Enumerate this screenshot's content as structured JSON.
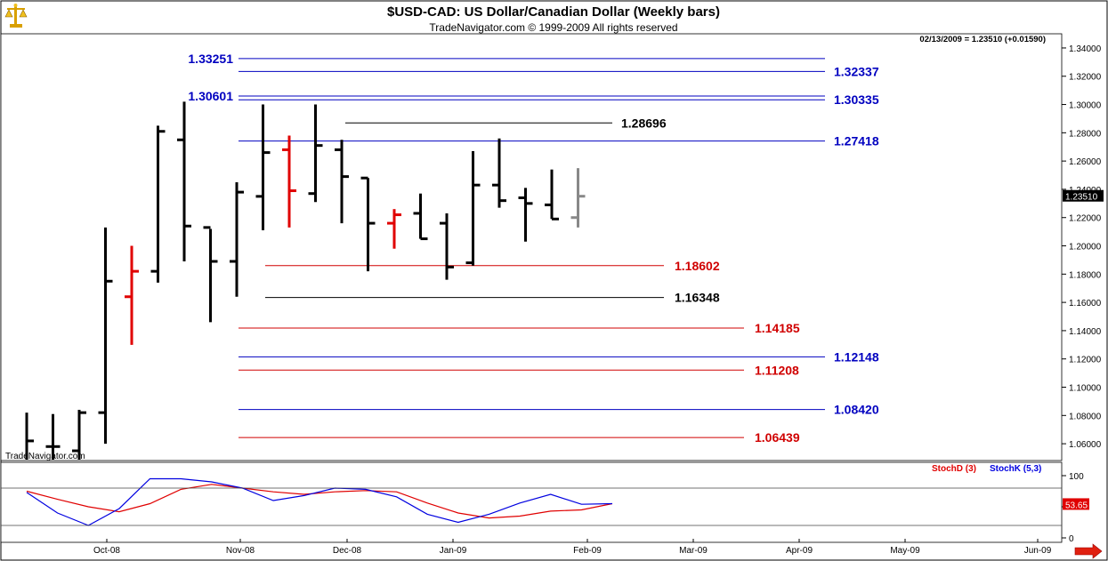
{
  "header": {
    "title": "$USD-CAD:  US Dollar/Canadian Dollar  (Weekly bars)",
    "copyright": "TradeNavigator.com © 1999-2009 All rights reserved",
    "quote": "02/13/2009 = 1.23510 (+0.01590)",
    "watermark": "TradeNavigator.com",
    "logo_icon": "scales-logo-icon"
  },
  "colors": {
    "frame": "#000000",
    "price_bar": "#000000",
    "price_bar_alt": "#e00000",
    "price_bar_last": "#888888",
    "level_blue": "#0000c0",
    "level_red": "#d00000",
    "level_black": "#000000",
    "stoch_d": "#e00000",
    "stoch_k": "#0000e0",
    "nav_arrow": "#e02010"
  },
  "chart_data": [
    {
      "type": "ohlc",
      "title": "$USD-CAD:  US Dollar/Canadian Dollar  (Weekly bars)",
      "ylim": [
        1.05,
        1.345
      ],
      "yticks": [
        "1.34000",
        "1.32000",
        "1.30000",
        "1.28000",
        "1.26000",
        "1.24000",
        "1.22000",
        "1.20000",
        "1.18000",
        "1.16000",
        "1.14000",
        "1.12000",
        "1.10000",
        "1.08000",
        "1.06000"
      ],
      "ytick_values": [
        1.34,
        1.32,
        1.3,
        1.28,
        1.26,
        1.24,
        1.22,
        1.2,
        1.18,
        1.16,
        1.14,
        1.12,
        1.1,
        1.08,
        1.06
      ],
      "xticks": [
        "Oct-08",
        "Nov-08",
        "Dec-08",
        "Jan-09",
        "Feb-09",
        "Mar-09",
        "Apr-09",
        "May-09",
        "Jun-09"
      ],
      "last_price_label": "1.23510",
      "last_price": 1.2351,
      "bars": [
        {
          "o": 1.045,
          "h": 1.082,
          "l": 1.045,
          "c": 1.062,
          "color": "black"
        },
        {
          "o": 1.058,
          "h": 1.081,
          "l": 1.045,
          "c": 1.058,
          "color": "black"
        },
        {
          "o": 1.055,
          "h": 1.084,
          "l": 1.045,
          "c": 1.082,
          "color": "black"
        },
        {
          "o": 1.082,
          "h": 1.213,
          "l": 1.06,
          "c": 1.175,
          "color": "black"
        },
        {
          "o": 1.164,
          "h": 1.2,
          "l": 1.13,
          "c": 1.182,
          "color": "red"
        },
        {
          "o": 1.182,
          "h": 1.285,
          "l": 1.174,
          "c": 1.281,
          "color": "black"
        },
        {
          "o": 1.275,
          "h": 1.302,
          "l": 1.189,
          "c": 1.214,
          "color": "black"
        },
        {
          "o": 1.213,
          "h": 1.212,
          "l": 1.146,
          "c": 1.189,
          "color": "black"
        },
        {
          "o": 1.189,
          "h": 1.245,
          "l": 1.164,
          "c": 1.238,
          "color": "black"
        },
        {
          "o": 1.235,
          "h": 1.3,
          "l": 1.211,
          "c": 1.266,
          "color": "black"
        },
        {
          "o": 1.268,
          "h": 1.278,
          "l": 1.213,
          "c": 1.239,
          "color": "red"
        },
        {
          "o": 1.237,
          "h": 1.3,
          "l": 1.231,
          "c": 1.271,
          "color": "black"
        },
        {
          "o": 1.268,
          "h": 1.275,
          "l": 1.216,
          "c": 1.249,
          "color": "black"
        },
        {
          "o": 1.248,
          "h": 1.248,
          "l": 1.182,
          "c": 1.216,
          "color": "black"
        },
        {
          "o": 1.216,
          "h": 1.226,
          "l": 1.198,
          "c": 1.222,
          "color": "red"
        },
        {
          "o": 1.223,
          "h": 1.237,
          "l": 1.205,
          "c": 1.205,
          "color": "black"
        },
        {
          "o": 1.216,
          "h": 1.223,
          "l": 1.176,
          "c": 1.185,
          "color": "black"
        },
        {
          "o": 1.188,
          "h": 1.267,
          "l": 1.186,
          "c": 1.243,
          "color": "black"
        },
        {
          "o": 1.243,
          "h": 1.276,
          "l": 1.227,
          "c": 1.232,
          "color": "black"
        },
        {
          "o": 1.234,
          "h": 1.241,
          "l": 1.203,
          "c": 1.23,
          "color": "black"
        },
        {
          "o": 1.229,
          "h": 1.254,
          "l": 1.219,
          "c": 1.219,
          "color": "black"
        },
        {
          "o": 1.22,
          "h": 1.255,
          "l": 1.213,
          "c": 1.2351,
          "color": "gray"
        }
      ],
      "levels": [
        {
          "value": 1.33251,
          "label": "1.33251",
          "side": "left",
          "color": "blue"
        },
        {
          "value": 1.32337,
          "label": "1.32337",
          "side": "right",
          "color": "blue"
        },
        {
          "value": 1.30601,
          "label": "1.30601",
          "side": "left",
          "color": "blue"
        },
        {
          "value": 1.30335,
          "label": "1.30335",
          "side": "right",
          "color": "blue"
        },
        {
          "value": 1.28696,
          "label": "1.28696",
          "side": "mid",
          "color": "black"
        },
        {
          "value": 1.27418,
          "label": "1.27418",
          "side": "right",
          "color": "blue"
        },
        {
          "value": 1.18602,
          "label": "1.18602",
          "side": "mid",
          "color": "red"
        },
        {
          "value": 1.16348,
          "label": "1.16348",
          "side": "mid",
          "color": "black"
        },
        {
          "value": 1.14185,
          "label": "1.14185",
          "side": "right",
          "color": "red"
        },
        {
          "value": 1.12148,
          "label": "1.12148",
          "side": "right",
          "color": "blue"
        },
        {
          "value": 1.11208,
          "label": "1.11208",
          "side": "right",
          "color": "red"
        },
        {
          "value": 1.0842,
          "label": "1.08420",
          "side": "right",
          "color": "blue"
        },
        {
          "value": 1.06439,
          "label": "1.06439",
          "side": "right",
          "color": "red"
        }
      ]
    },
    {
      "type": "line",
      "ylim": [
        0,
        100
      ],
      "yticks": [
        "100",
        "50",
        "0"
      ],
      "ytick_values": [
        100,
        50,
        0
      ],
      "last_value_label": "53.65",
      "legend": [
        "StochD (3)",
        "StochK (5,3)"
      ],
      "series": [
        {
          "name": "StochD (3)",
          "color": "red",
          "values": [
            75,
            62,
            50,
            42,
            55,
            78,
            86,
            80,
            74,
            70,
            74,
            76,
            74,
            56,
            40,
            32,
            35,
            43,
            45,
            55
          ]
        },
        {
          "name": "StochK (5,3)",
          "color": "blue",
          "values": [
            73,
            40,
            20,
            47,
            95,
            95,
            90,
            80,
            60,
            68,
            80,
            78,
            66,
            38,
            25,
            38,
            56,
            70,
            54,
            55
          ]
        }
      ]
    }
  ]
}
